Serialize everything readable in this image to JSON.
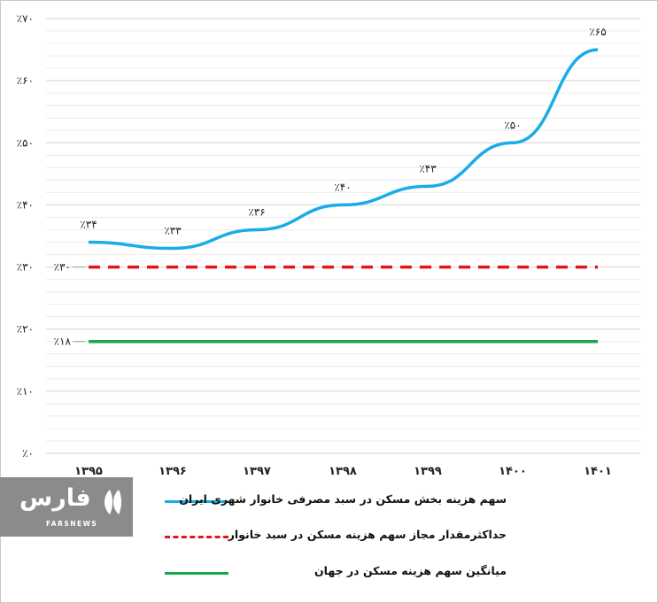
{
  "chart_data": {
    "type": "line",
    "categories": [
      "۱۳۹۵",
      "۱۳۹۶",
      "۱۳۹۷",
      "۱۳۹۸",
      "۱۳۹۹",
      "۱۴۰۰",
      "۱۴۰۱"
    ],
    "ylim": [
      0,
      70
    ],
    "yticks": [
      0,
      10,
      20,
      30,
      40,
      50,
      60,
      70
    ],
    "ytick_labels": [
      "٪۰",
      "٪۱۰",
      "٪۲۰",
      "٪۳۰",
      "٪۴۰",
      "٪۵۰",
      "٪۶۰",
      "٪۷۰"
    ],
    "grid": true,
    "legend_position": "bottom",
    "series": [
      {
        "name": "سهم هزینه بخش مسکن در سبد مصرفی خانوار شهری ایران",
        "values": [
          34,
          33,
          36,
          40,
          43,
          50,
          65
        ],
        "labels": [
          "٪۳۴",
          "٪۳۳",
          "٪۳۶",
          "٪۴۰",
          "٪۴۳",
          "٪۵۰",
          "٪۶۵"
        ],
        "color": "#1aace8",
        "style": "solid"
      },
      {
        "name": "حداکثرمقدار مجاز  سهم هزینه مسکن در سبد خانوار",
        "values": [
          30,
          30,
          30,
          30,
          30,
          30,
          30
        ],
        "start_label": "٪۳۰",
        "color": "#e0161b",
        "style": "dashed"
      },
      {
        "name": "میانگین سهم هزینه مسکن در جهان",
        "values": [
          18,
          18,
          18,
          18,
          18,
          18,
          18
        ],
        "start_label": "٪۱۸",
        "color": "#1aa64a",
        "style": "solid"
      }
    ]
  },
  "watermark": {
    "brand": "فارس",
    "sub": "FARSNEWS",
    "color": "#8b8b8b"
  }
}
